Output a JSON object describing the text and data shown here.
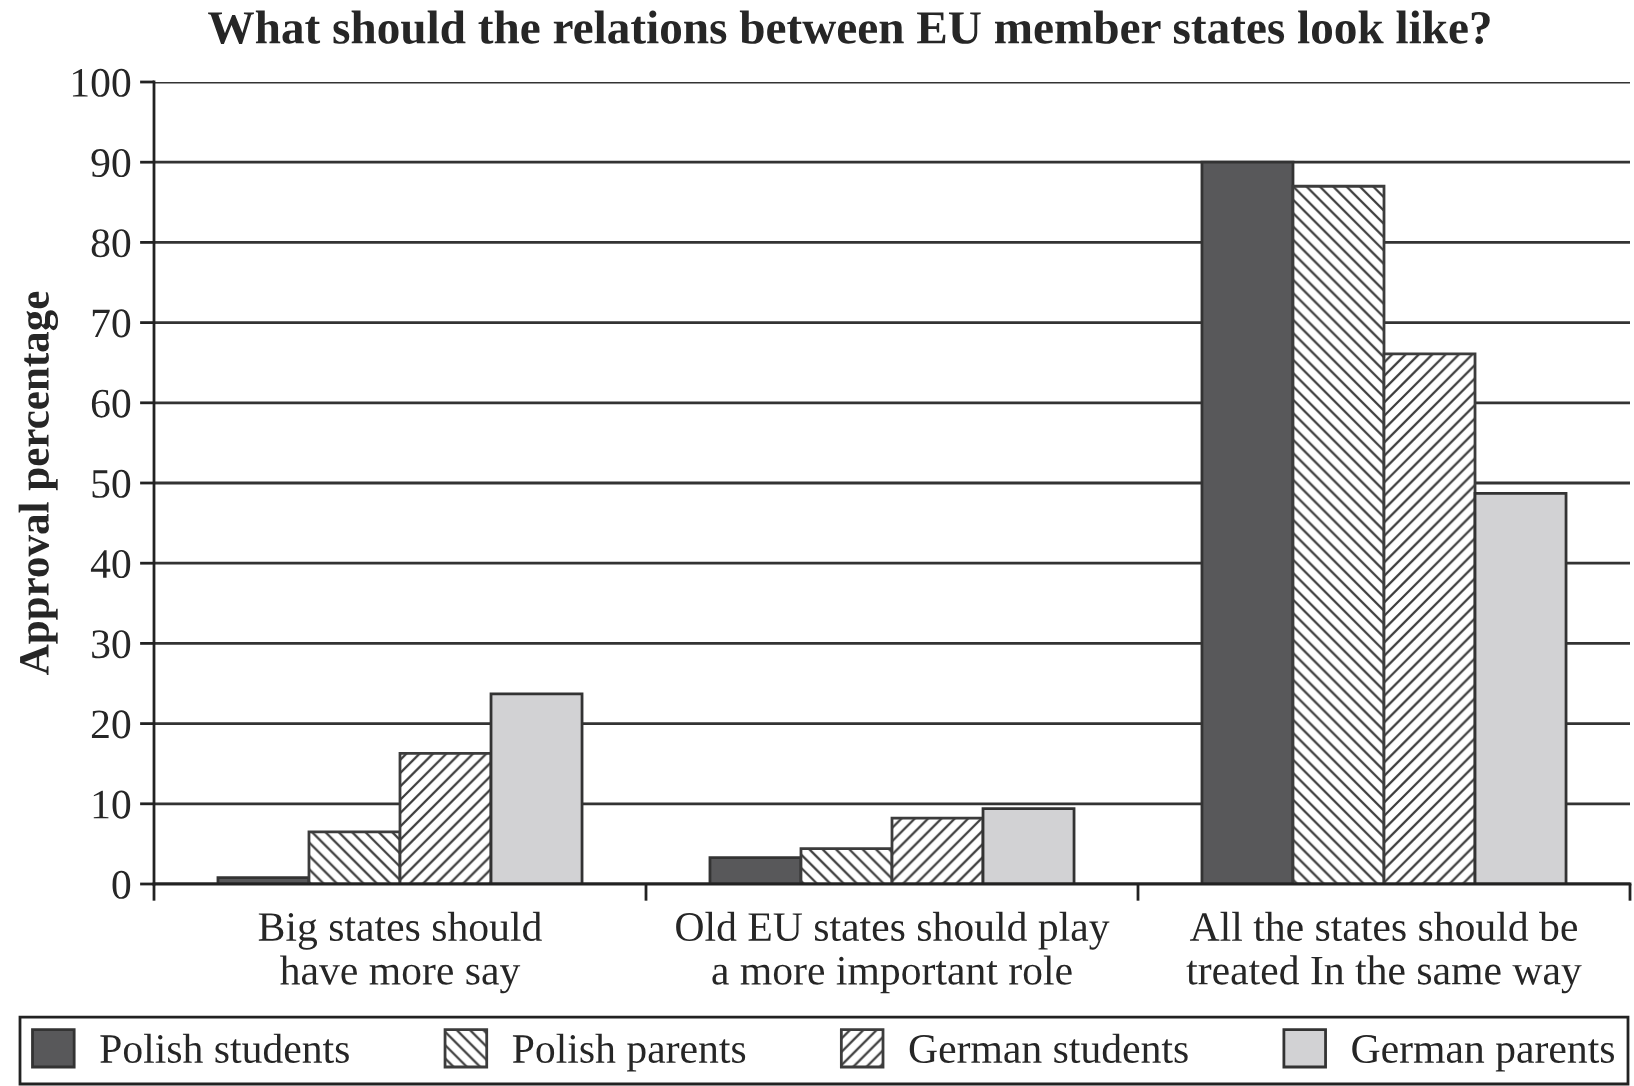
{
  "chart_data": {
    "type": "bar",
    "title": "What should the relations between EU member states look like?",
    "ylabel": "Approval percentage",
    "categories": [
      "Big states should\nhave more say",
      "Old EU states should play\na more important role",
      "All the states should be\ntreated In the same way"
    ],
    "series": [
      {
        "name": "Polish students",
        "color": "#58585a",
        "values": [
          0.8,
          3.3,
          90.0
        ]
      },
      {
        "name": "Polish parents",
        "color": "#3c3c3c",
        "values": [
          6.5,
          4.4,
          87.0
        ]
      },
      {
        "name": "German students",
        "color": "#3c3c3c",
        "values": [
          16.3,
          8.2,
          66.1
        ]
      },
      {
        "name": "German parents",
        "color": "#d2d2d4",
        "values": [
          23.7,
          9.4,
          48.7
        ]
      }
    ],
    "ylim": [
      0,
      100
    ],
    "yticks": [
      0,
      10,
      20,
      30,
      40,
      50,
      60,
      70,
      80,
      90,
      100
    ],
    "grid": "y",
    "legend": "bottom"
  }
}
